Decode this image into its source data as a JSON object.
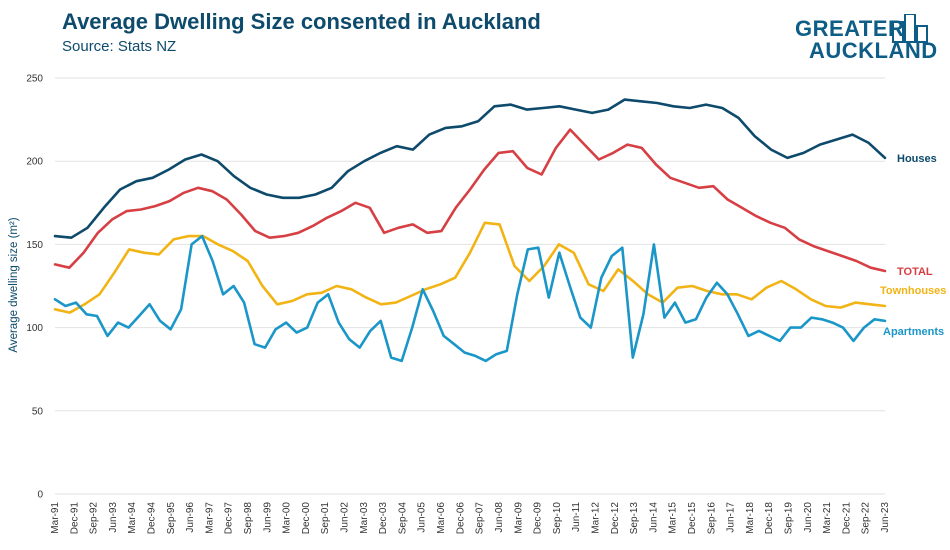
{
  "header": {
    "title": "Average Dwelling Size consented in Auckland",
    "subtitle": "Source: Stats NZ"
  },
  "logo": {
    "line1": "GREATER",
    "line2": "AUCKLAND",
    "color": "#0e5d86"
  },
  "chart_data": {
    "type": "line",
    "title": "Average Dwelling Size consented in Auckland",
    "subtitle": "Source: Stats NZ",
    "ylabel": "Average dwelling size (m²)",
    "xlabel": "",
    "ylim": [
      0,
      250
    ],
    "yticks": [
      0,
      50,
      100,
      150,
      200,
      250
    ],
    "grid": "horizontal",
    "legend": "inline-right",
    "x_ticks": [
      "Mar-91",
      "Dec-91",
      "Sep-92",
      "Jun-93",
      "Mar-94",
      "Dec-94",
      "Sep-95",
      "Jun-96",
      "Mar-97",
      "Dec-97",
      "Sep-98",
      "Jun-99",
      "Mar-00",
      "Dec-00",
      "Sep-01",
      "Jun-02",
      "Mar-03",
      "Dec-03",
      "Sep-04",
      "Jun-05",
      "Mar-06",
      "Dec-06",
      "Sep-07",
      "Jun-08",
      "Mar-09",
      "Dec-09",
      "Sep-10",
      "Jun-11",
      "Mar-12",
      "Dec-12",
      "Sep-13",
      "Jun-14",
      "Mar-15",
      "Dec-15",
      "Sep-16",
      "Jun-17",
      "Mar-18",
      "Dec-18",
      "Sep-19",
      "Jun-20",
      "Mar-21",
      "Dec-21",
      "Sep-22",
      "Jun-23"
    ],
    "series": [
      {
        "name": "Houses",
        "color": "#0d4a6b",
        "values": [
          155,
          154,
          160,
          172,
          183,
          188,
          190,
          195,
          201,
          204,
          200,
          191,
          184,
          180,
          178,
          178,
          180,
          184,
          194,
          200,
          205,
          209,
          207,
          216,
          220,
          221,
          224,
          233,
          234,
          231,
          232,
          233,
          231,
          229,
          231,
          237,
          236,
          235,
          233,
          232,
          234,
          232,
          226,
          215,
          207,
          202,
          205,
          210,
          213,
          216,
          211,
          202
        ]
      },
      {
        "name": "TOTAL",
        "color": "#d64045",
        "values": [
          138,
          136,
          145,
          157,
          165,
          170,
          171,
          173,
          176,
          181,
          184,
          182,
          177,
          168,
          158,
          154,
          155,
          157,
          161,
          166,
          170,
          175,
          172,
          157,
          160,
          162,
          157,
          158,
          172,
          183,
          195,
          205,
          206,
          196,
          192,
          208,
          219,
          210,
          201,
          205,
          210,
          208,
          198,
          190,
          187,
          184,
          185,
          177,
          172,
          167,
          163,
          160,
          153,
          149,
          146,
          143,
          140,
          136,
          134
        ]
      },
      {
        "name": "Townhouses",
        "color": "#f2b315",
        "values": [
          111,
          109,
          114,
          120,
          133,
          147,
          145,
          144,
          153,
          155,
          155,
          150,
          146,
          140,
          125,
          114,
          116,
          120,
          121,
          125,
          123,
          118,
          114,
          115,
          119,
          123,
          126,
          130,
          145,
          163,
          162,
          137,
          128,
          137,
          150,
          145,
          126,
          122,
          135,
          128,
          120,
          115,
          124,
          125,
          122,
          120,
          120,
          117,
          124,
          128,
          123,
          117,
          113,
          112,
          115,
          114,
          113
        ]
      },
      {
        "name": "Apartments",
        "color": "#1a96c8",
        "values": [
          117,
          113,
          115,
          108,
          107,
          95,
          103,
          100,
          107,
          114,
          104,
          99,
          111,
          150,
          155,
          140,
          120,
          125,
          115,
          90,
          88,
          99,
          103,
          97,
          100,
          115,
          120,
          103,
          93,
          88,
          98,
          104,
          82,
          80,
          100,
          123,
          110,
          95,
          90,
          85,
          83,
          80,
          84,
          86,
          120,
          147,
          148,
          118,
          145,
          125,
          106,
          100,
          130,
          143,
          148,
          82,
          108,
          150,
          106,
          115,
          103,
          105,
          118,
          127,
          120,
          108,
          95,
          98,
          95,
          92,
          100,
          100,
          106,
          105,
          103,
          100,
          92,
          100,
          105,
          104
        ]
      }
    ]
  }
}
